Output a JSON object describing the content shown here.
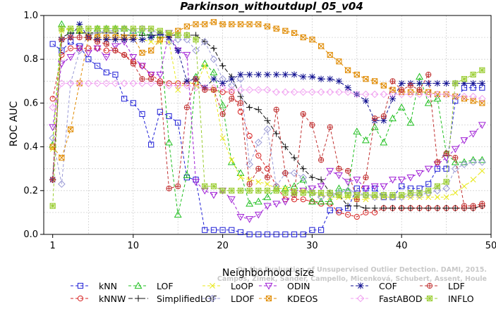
{
  "chart_data": {
    "type": "line",
    "title": "Parkinson_withoutdupl_05_v04",
    "xlabel": "Neighborhood size",
    "ylabel": "ROC AUC",
    "xlim": [
      0,
      50
    ],
    "ylim": [
      0,
      1
    ],
    "xticks": [
      1,
      10,
      20,
      30,
      40,
      50
    ],
    "yticks": [
      0.0,
      0.2,
      0.4,
      0.6,
      0.8,
      1.0
    ],
    "x": [
      1,
      2,
      3,
      4,
      5,
      6,
      7,
      8,
      9,
      10,
      11,
      12,
      13,
      14,
      15,
      16,
      17,
      18,
      19,
      20,
      21,
      22,
      23,
      24,
      25,
      26,
      27,
      28,
      29,
      30,
      31,
      32,
      33,
      34,
      35,
      36,
      37,
      38,
      39,
      40,
      41,
      42,
      43,
      44,
      45,
      46,
      47,
      48,
      49
    ],
    "grid": true,
    "legend_position": "bottom",
    "watermark": "Campos, Zimek, Sander, Campello, Micenková, Schubert, Assent, Houle\nOn the Evaluation of Unsupervised Outlier Detection. DAMI, 2015.",
    "series": [
      {
        "name": "kNN",
        "color": "#1f1fd6",
        "marker": "square",
        "values": [
          0.87,
          0.84,
          0.88,
          0.86,
          0.8,
          0.77,
          0.74,
          0.73,
          0.62,
          0.6,
          0.55,
          0.41,
          0.56,
          0.54,
          0.51,
          0.26,
          0.25,
          0.02,
          0.02,
          0.02,
          0.02,
          0.01,
          0.0,
          0.0,
          0.0,
          0.0,
          0.0,
          0.0,
          0.0,
          0.02,
          0.02,
          0.11,
          0.11,
          0.12,
          0.21,
          0.21,
          0.21,
          0.17,
          0.17,
          0.22,
          0.21,
          0.21,
          0.23,
          0.3,
          0.3,
          0.61,
          0.67,
          0.67,
          0.67
        ]
      },
      {
        "name": "kNNW",
        "color": "#d62020",
        "marker": "circle",
        "values": [
          0.62,
          0.82,
          0.85,
          0.85,
          0.85,
          0.85,
          0.84,
          0.84,
          0.82,
          0.79,
          0.77,
          0.73,
          0.7,
          0.69,
          0.69,
          0.69,
          0.69,
          0.67,
          0.66,
          0.65,
          0.65,
          0.56,
          0.45,
          0.36,
          0.3,
          0.22,
          0.16,
          0.16,
          0.16,
          0.15,
          0.14,
          0.14,
          0.1,
          0.09,
          0.08,
          0.1,
          0.1,
          0.12,
          0.12,
          0.12,
          0.12,
          0.12,
          0.12,
          0.12,
          0.12,
          0.12,
          0.12,
          0.12,
          0.13
        ]
      },
      {
        "name": "LOF",
        "color": "#1fbf1f",
        "marker": "triangle",
        "values": [
          0.41,
          0.96,
          0.93,
          0.93,
          0.91,
          0.94,
          0.94,
          0.94,
          0.94,
          0.93,
          0.92,
          0.91,
          0.91,
          0.42,
          0.09,
          0.27,
          0.72,
          0.78,
          0.74,
          0.59,
          0.33,
          0.28,
          0.14,
          0.15,
          0.17,
          0.21,
          0.21,
          0.22,
          0.25,
          0.15,
          0.15,
          0.15,
          0.21,
          0.2,
          0.47,
          0.43,
          0.49,
          0.42,
          0.53,
          0.58,
          0.51,
          0.72,
          0.6,
          0.62,
          0.37,
          0.33,
          0.33,
          0.34,
          0.34
        ]
      },
      {
        "name": "SimplifiedLOF",
        "color": "#111111",
        "marker": "plus",
        "values": [
          0.25,
          0.9,
          0.92,
          0.92,
          0.92,
          0.92,
          0.92,
          0.92,
          0.91,
          0.91,
          0.91,
          0.91,
          0.91,
          0.91,
          0.91,
          0.91,
          0.91,
          0.88,
          0.85,
          0.77,
          0.72,
          0.63,
          0.58,
          0.57,
          0.52,
          0.46,
          0.4,
          0.35,
          0.3,
          0.26,
          0.25,
          0.19,
          0.18,
          0.13,
          0.13,
          0.12,
          0.12,
          0.12,
          0.12,
          0.12,
          0.12,
          0.12,
          0.12,
          0.12,
          0.12,
          0.12,
          0.12,
          0.12,
          0.13
        ]
      },
      {
        "name": "LoOP",
        "color": "#e8e81a",
        "marker": "x",
        "values": [
          0.39,
          0.93,
          0.94,
          0.93,
          0.91,
          0.91,
          0.93,
          0.92,
          0.89,
          0.9,
          0.89,
          0.88,
          0.88,
          0.88,
          0.66,
          0.7,
          0.68,
          0.77,
          0.66,
          0.44,
          0.34,
          0.26,
          0.25,
          0.24,
          0.23,
          0.21,
          0.21,
          0.2,
          0.2,
          0.19,
          0.18,
          0.17,
          0.17,
          0.17,
          0.16,
          0.16,
          0.17,
          0.17,
          0.17,
          0.17,
          0.17,
          0.17,
          0.17,
          0.17,
          0.17,
          0.19,
          0.22,
          0.25,
          0.29
        ]
      },
      {
        "name": "LDOF",
        "color": "#9a9ad6",
        "marker": "diamond",
        "values": [
          0.44,
          0.23,
          0.69,
          0.84,
          0.91,
          0.92,
          0.93,
          0.93,
          0.94,
          0.93,
          0.94,
          0.93,
          0.92,
          0.88,
          0.89,
          0.89,
          0.84,
          0.88,
          0.8,
          0.71,
          0.68,
          0.71,
          0.32,
          0.42,
          0.48,
          0.22,
          0.28,
          0.28,
          0.26,
          0.19,
          0.17,
          0.18,
          0.19,
          0.2,
          0.19,
          0.18,
          0.17,
          0.18,
          0.17,
          0.17,
          0.18,
          0.18,
          0.19,
          0.2,
          0.21,
          0.3,
          0.32,
          0.33,
          0.33
        ]
      },
      {
        "name": "ODIN",
        "color": "#a020d6",
        "marker": "triangle-down",
        "values": [
          0.49,
          0.78,
          0.81,
          0.85,
          0.83,
          0.85,
          0.81,
          0.86,
          0.88,
          0.81,
          0.77,
          0.73,
          0.73,
          0.92,
          0.84,
          0.82,
          0.24,
          0.2,
          0.18,
          0.2,
          0.16,
          0.08,
          0.07,
          0.09,
          0.13,
          0.14,
          0.15,
          0.19,
          0.2,
          0.21,
          0.22,
          0.29,
          0.27,
          0.24,
          0.25,
          0.21,
          0.22,
          0.22,
          0.25,
          0.25,
          0.26,
          0.28,
          0.3,
          0.32,
          0.35,
          0.39,
          0.43,
          0.46,
          0.5
        ]
      },
      {
        "name": "KDEOS",
        "color": "#e08a00",
        "marker": "square-x",
        "values": [
          0.4,
          0.35,
          0.48,
          0.69,
          0.9,
          0.9,
          0.9,
          0.9,
          0.9,
          0.9,
          0.83,
          0.84,
          0.89,
          0.91,
          0.93,
          0.95,
          0.96,
          0.96,
          0.97,
          0.96,
          0.96,
          0.96,
          0.96,
          0.96,
          0.95,
          0.94,
          0.93,
          0.92,
          0.9,
          0.89,
          0.86,
          0.82,
          0.79,
          0.75,
          0.73,
          0.71,
          0.7,
          0.68,
          0.66,
          0.65,
          0.65,
          0.65,
          0.65,
          0.64,
          0.64,
          0.63,
          0.62,
          0.61,
          0.6
        ]
      },
      {
        "name": "COF",
        "color": "#101090",
        "marker": "asterisk",
        "values": [
          0.25,
          0.89,
          0.9,
          0.96,
          0.9,
          0.89,
          0.89,
          0.89,
          0.89,
          0.89,
          0.89,
          0.9,
          0.92,
          0.9,
          0.84,
          0.7,
          0.71,
          0.67,
          0.71,
          0.69,
          0.71,
          0.73,
          0.73,
          0.73,
          0.73,
          0.73,
          0.73,
          0.73,
          0.72,
          0.72,
          0.71,
          0.71,
          0.7,
          0.67,
          0.64,
          0.61,
          0.52,
          0.52,
          0.62,
          0.69,
          0.69,
          0.69,
          0.69,
          0.69,
          0.69,
          0.69,
          0.69,
          0.69,
          0.69
        ]
      },
      {
        "name": "FastABOD",
        "color": "#f0a0f0",
        "marker": "diamond",
        "values": [
          0.58,
          0.69,
          0.69,
          0.69,
          0.69,
          0.69,
          0.69,
          0.69,
          0.69,
          0.69,
          0.69,
          0.69,
          0.69,
          0.68,
          0.68,
          0.68,
          0.67,
          0.67,
          0.67,
          0.67,
          0.66,
          0.66,
          0.66,
          0.66,
          0.66,
          0.65,
          0.65,
          0.65,
          0.65,
          0.65,
          0.65,
          0.65,
          0.65,
          0.65,
          0.64,
          0.64,
          0.64,
          0.64,
          0.64,
          0.64,
          0.64,
          0.64,
          0.64,
          0.64,
          0.64,
          0.63,
          0.63,
          0.63,
          0.62
        ]
      },
      {
        "name": "LDF",
        "color": "#c03030",
        "marker": "circle-plus",
        "values": [
          0.25,
          0.89,
          0.9,
          0.9,
          0.9,
          0.88,
          0.87,
          0.84,
          0.82,
          0.78,
          0.71,
          0.71,
          0.69,
          0.21,
          0.22,
          0.58,
          0.71,
          0.66,
          0.66,
          0.55,
          0.62,
          0.6,
          0.23,
          0.3,
          0.26,
          0.57,
          0.28,
          0.18,
          0.55,
          0.5,
          0.34,
          0.49,
          0.3,
          0.29,
          0.16,
          0.26,
          0.53,
          0.54,
          0.7,
          0.66,
          0.68,
          0.66,
          0.73,
          0.33,
          0.37,
          0.35,
          0.13,
          0.13,
          0.14
        ]
      },
      {
        "name": "INFLO",
        "color": "#9acd32",
        "marker": "star-square",
        "values": [
          0.13,
          0.94,
          0.94,
          0.94,
          0.94,
          0.94,
          0.94,
          0.94,
          0.94,
          0.94,
          0.94,
          0.94,
          0.93,
          0.92,
          0.91,
          0.91,
          0.89,
          0.22,
          0.22,
          0.2,
          0.2,
          0.2,
          0.2,
          0.2,
          0.2,
          0.2,
          0.19,
          0.19,
          0.19,
          0.19,
          0.19,
          0.19,
          0.18,
          0.18,
          0.18,
          0.18,
          0.18,
          0.18,
          0.18,
          0.18,
          0.19,
          0.19,
          0.2,
          0.22,
          0.24,
          0.69,
          0.71,
          0.73,
          0.75
        ]
      }
    ]
  }
}
